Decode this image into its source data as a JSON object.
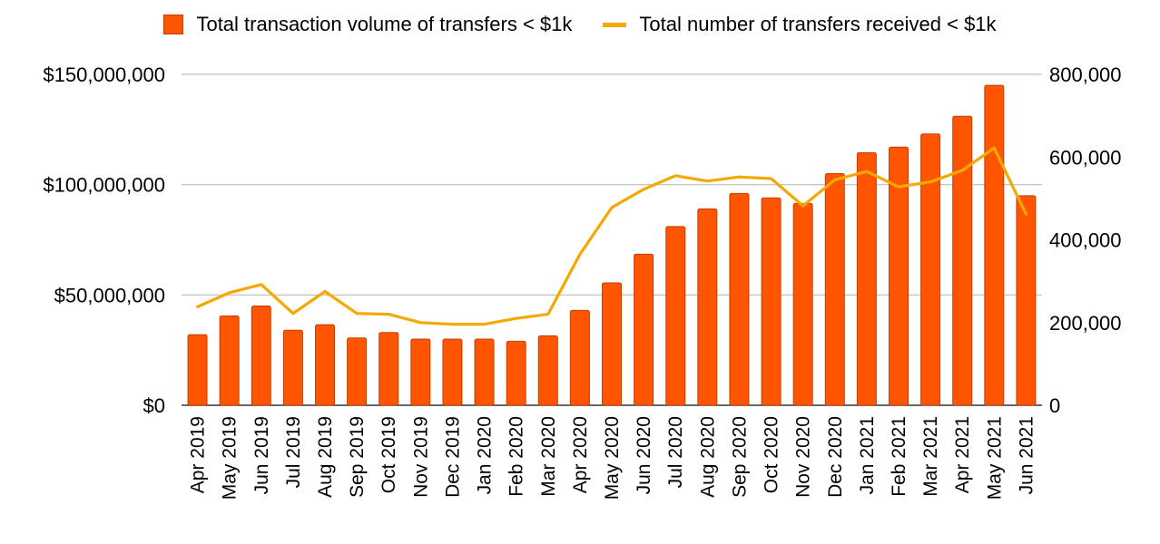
{
  "chart_data": {
    "type": "bar",
    "categories": [
      "Apr 2019",
      "May 2019",
      "Jun 2019",
      "Jul 2019",
      "Aug 2019",
      "Sep 2019",
      "Oct 2019",
      "Nov 2019",
      "Dec 2019",
      "Jan 2020",
      "Feb 2020",
      "Mar 2020",
      "Apr 2020",
      "May 2020",
      "Jun 2020",
      "Jul 2020",
      "Aug 2020",
      "Sep 2020",
      "Oct 2020",
      "Nov 2020",
      "Dec 2020",
      "Jan 2021",
      "Feb 2021",
      "Mar 2021",
      "Apr 2021",
      "May 2021",
      "Jun 2021"
    ],
    "series": [
      {
        "name": "Total transaction volume of transfers < $1k",
        "type": "bar",
        "axis": "left",
        "color": "#FF5500",
        "values": [
          32000000,
          40500000,
          45000000,
          34000000,
          36500000,
          30500000,
          33000000,
          30000000,
          30000000,
          30000000,
          29000000,
          31500000,
          43000000,
          55500000,
          68500000,
          81000000,
          89000000,
          96000000,
          94000000,
          91500000,
          105000000,
          114500000,
          117000000,
          123000000,
          131000000,
          145000000,
          95000000
        ]
      },
      {
        "name": "Total number of transfers received < $1k",
        "type": "line",
        "axis": "right",
        "color": "#F5A800",
        "values": [
          238000,
          272000,
          292000,
          222000,
          275000,
          222000,
          220000,
          200000,
          196000,
          196000,
          210000,
          220000,
          365000,
          478000,
          522000,
          555000,
          542000,
          552000,
          548000,
          482000,
          545000,
          565000,
          528000,
          540000,
          568000,
          622000,
          462000
        ]
      }
    ],
    "y_left": {
      "ticks": [
        "$0",
        "$50,000,000",
        "$100,000,000",
        "$150,000,000"
      ],
      "tick_values": [
        0,
        50000000,
        100000000,
        150000000
      ],
      "ylim": [
        0,
        150000000
      ]
    },
    "y_right": {
      "ticks": [
        "0",
        "200,000",
        "400,000",
        "600,000",
        "800,000"
      ],
      "tick_values": [
        0,
        200000,
        400000,
        600000,
        800000
      ],
      "ylim": [
        0,
        800000
      ]
    },
    "grid": true,
    "legend_position": "top-center",
    "title": "",
    "xlabel": "",
    "ylabel": ""
  }
}
